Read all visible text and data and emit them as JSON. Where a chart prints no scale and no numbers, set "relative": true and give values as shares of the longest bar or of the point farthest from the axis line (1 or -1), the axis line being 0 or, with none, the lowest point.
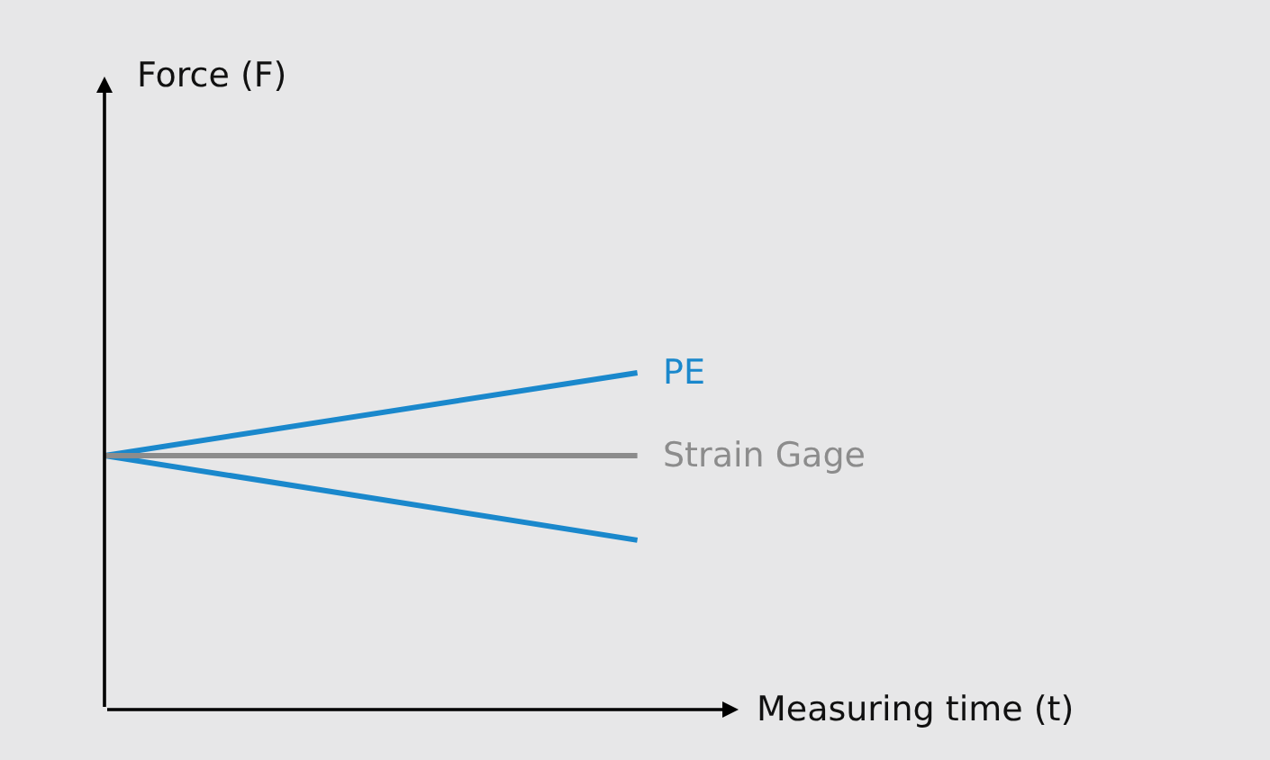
{
  "chart_data": {
    "type": "line",
    "relative": true,
    "xlabel": "Measuring time (t)",
    "annotations": [
      "Force (F)"
    ],
    "categories": [
      null,
      null
    ],
    "series": [
      {
        "name": "PE",
        "color": "#1a88cc",
        "values": [
          0.754,
          1
        ]
      },
      {
        "color": "#1a88cc",
        "values": [
          0.754,
          0.503
        ]
      },
      {
        "name": "Strain Gage",
        "color": "#8c8c8c",
        "values": [
          0.754,
          0.754
        ]
      }
    ],
    "legend": false,
    "grid": false,
    "marker": "none",
    "line_style": "solid"
  }
}
